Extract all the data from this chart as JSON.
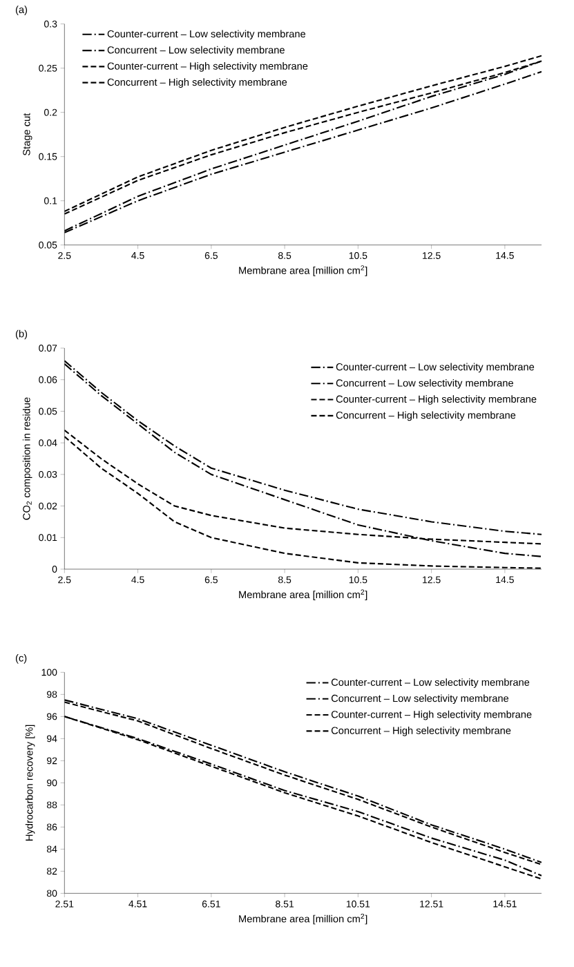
{
  "chart_data": [
    {
      "type": "line",
      "title": "(a)",
      "xlabel": "Membrane area [million cm$^{2}$]",
      "ylabel": "Stage cut",
      "xlim": [
        2.5,
        15.5
      ],
      "xticks": [
        2.5,
        4.5,
        6.5,
        8.5,
        10.5,
        12.5,
        14.5
      ],
      "ylim": [
        0.05,
        0.3
      ],
      "yticks": [
        0.05,
        0.1,
        0.15,
        0.2,
        0.25,
        0.3
      ],
      "legend": "top left",
      "x": [
        2.5,
        4.5,
        6.5,
        8.5,
        10.5,
        12.5,
        14.5,
        15.5
      ],
      "series": [
        {
          "name": "Counter-current – Low selectivity membrane",
          "color": "#000000",
          "line_style": "dashdot",
          "values": [
            0.066,
            0.105,
            0.136,
            0.163,
            0.19,
            0.218,
            0.243,
            0.258
          ]
        },
        {
          "name": "Concurrent – Low selectivity membrane",
          "color": "#000000",
          "line_style": "dashdot",
          "values": [
            0.064,
            0.1,
            0.13,
            0.155,
            0.18,
            0.205,
            0.232,
            0.246
          ]
        },
        {
          "name": "Counter-current – High selectivity membrane",
          "color": "#000000",
          "line_style": "dashed",
          "values": [
            0.088,
            0.127,
            0.157,
            0.183,
            0.207,
            0.23,
            0.252,
            0.264
          ]
        },
        {
          "name": "Concurrent – High selectivity membrane",
          "color": "#000000",
          "line_style": "dashed",
          "values": [
            0.085,
            0.123,
            0.152,
            0.177,
            0.2,
            0.222,
            0.245,
            0.258
          ]
        }
      ]
    },
    {
      "type": "line",
      "title": "(b)",
      "xlabel": "Membrane area [million cm$^{2}$]",
      "ylabel": "CO$_{2}$ composition in residue",
      "xlim": [
        2.5,
        15.5
      ],
      "xticks": [
        2.5,
        4.5,
        6.5,
        8.5,
        10.5,
        12.5,
        14.5
      ],
      "ylim": [
        0,
        0.07
      ],
      "yticks": [
        0,
        0.01,
        0.02,
        0.03,
        0.04,
        0.05,
        0.06,
        0.07
      ],
      "legend": "right",
      "x": [
        2.5,
        3.5,
        4.5,
        5.5,
        6.5,
        8.5,
        10.5,
        12.5,
        14.5,
        15.5
      ],
      "series": [
        {
          "name": "Counter-current – Low selectivity membrane",
          "color": "#000000",
          "line_style": "dashdot",
          "values": [
            0.065,
            0.055,
            0.046,
            0.037,
            0.03,
            0.022,
            0.014,
            0.009,
            0.005,
            0.004
          ]
        },
        {
          "name": "Concurrent – Low selectivity membrane",
          "color": "#000000",
          "line_style": "dashdot",
          "values": [
            0.066,
            0.056,
            0.047,
            0.039,
            0.032,
            0.025,
            0.019,
            0.015,
            0.012,
            0.011
          ]
        },
        {
          "name": "Counter-current – High selectivity membrane",
          "color": "#000000",
          "line_style": "dashed",
          "values": [
            0.042,
            0.032,
            0.024,
            0.015,
            0.01,
            0.005,
            0.002,
            0.001,
            0.0005,
            0.0003
          ]
        },
        {
          "name": "Concurrent – High selectivity membrane",
          "color": "#000000",
          "line_style": "dashed",
          "values": [
            0.044,
            0.035,
            0.027,
            0.02,
            0.017,
            0.013,
            0.011,
            0.0095,
            0.0085,
            0.008
          ]
        }
      ]
    },
    {
      "type": "line",
      "title": "(c)",
      "xlabel": "Membrane area [million cm$^{2}$]",
      "ylabel": "Hydrocarbon recovery [%]",
      "xlim": [
        2.51,
        15.51
      ],
      "xticks": [
        2.51,
        4.51,
        6.51,
        8.51,
        10.51,
        12.51,
        14.51
      ],
      "ylim": [
        80,
        100
      ],
      "yticks": [
        80,
        82,
        84,
        86,
        88,
        90,
        92,
        94,
        96,
        98,
        100
      ],
      "legend": "top right",
      "x": [
        2.51,
        4.51,
        6.51,
        8.51,
        10.51,
        12.51,
        14.51,
        15.51
      ],
      "series": [
        {
          "name": "Counter-current – Low selectivity membrane",
          "color": "#000000",
          "line_style": "dashdot",
          "values": [
            97.5,
            95.8,
            93.4,
            91,
            88.8,
            86.2,
            84,
            82.8
          ]
        },
        {
          "name": "Concurrent – Low selectivity membrane",
          "color": "#000000",
          "line_style": "dashdot",
          "values": [
            96,
            94,
            91.7,
            89.3,
            87.4,
            85,
            83,
            81.6
          ]
        },
        {
          "name": "Counter-current – High selectivity membrane",
          "color": "#000000",
          "line_style": "dashed",
          "values": [
            97.3,
            95.6,
            93.1,
            90.7,
            88.5,
            86,
            83.7,
            82.6
          ]
        },
        {
          "name": "Concurrent – High selectivity membrane",
          "color": "#000000",
          "line_style": "dashed",
          "values": [
            96,
            93.9,
            91.5,
            89.1,
            87,
            84.6,
            82.4,
            81.3
          ]
        }
      ]
    }
  ]
}
